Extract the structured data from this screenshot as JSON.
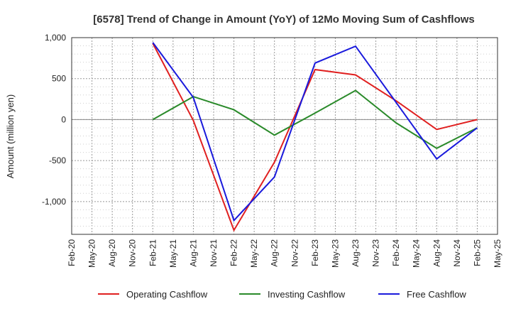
{
  "chart_data": {
    "type": "line",
    "title": "[6578]  Trend of Change in Amount (YoY) of 12Mo Moving Sum of Cashflows",
    "xlabel": "",
    "ylabel": "Amount (million yen)",
    "ylim": [
      -1400,
      1000
    ],
    "yticks": [
      1000,
      500,
      0,
      -500,
      -1000
    ],
    "ytick_labels": [
      "1,000",
      "500",
      "0",
      "-500",
      "-1,000"
    ],
    "categories": [
      "Feb-20",
      "May-20",
      "Aug-20",
      "Nov-20",
      "Feb-21",
      "May-21",
      "Aug-21",
      "Nov-21",
      "Feb-22",
      "May-22",
      "Aug-22",
      "Nov-22",
      "Feb-23",
      "May-23",
      "Aug-23",
      "Nov-23",
      "Feb-24",
      "May-24",
      "Aug-24",
      "Nov-24",
      "Feb-25",
      "May-25"
    ],
    "grid": true,
    "legend_position": "bottom",
    "series": [
      {
        "name": "Operating Cashflow",
        "color": "#e02020",
        "values": [
          null,
          null,
          null,
          null,
          930,
          null,
          -10,
          null,
          -1350,
          null,
          -520,
          null,
          610,
          null,
          545,
          null,
          230,
          null,
          -120,
          null,
          0,
          null
        ]
      },
      {
        "name": "Investing Cashflow",
        "color": "#2a8a2a",
        "values": [
          null,
          null,
          null,
          null,
          0,
          null,
          280,
          null,
          120,
          null,
          -190,
          null,
          80,
          null,
          355,
          null,
          -40,
          null,
          -350,
          null,
          -100,
          null
        ]
      },
      {
        "name": "Free Cashflow",
        "color": "#1a1adc",
        "values": [
          null,
          null,
          null,
          null,
          940,
          null,
          270,
          null,
          -1230,
          null,
          -700,
          null,
          690,
          null,
          895,
          null,
          210,
          null,
          -480,
          null,
          -100,
          null
        ]
      }
    ]
  }
}
